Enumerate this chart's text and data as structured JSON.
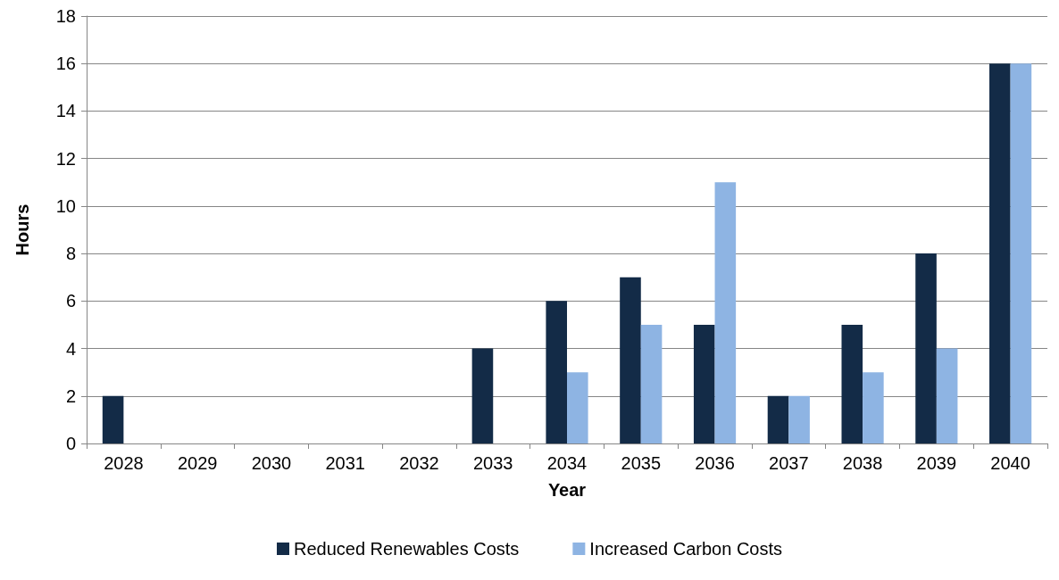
{
  "chart_data": {
    "type": "bar",
    "xlabel": "Year",
    "ylabel": "Hours",
    "categories": [
      "2028",
      "2029",
      "2030",
      "2031",
      "2032",
      "2033",
      "2034",
      "2035",
      "2036",
      "2037",
      "2038",
      "2039",
      "2040"
    ],
    "series": [
      {
        "name": "Reduced Renewables Costs",
        "color": "#132b47",
        "values": [
          2,
          0,
          0,
          0,
          0,
          4,
          6,
          7,
          5,
          2,
          5,
          8,
          16
        ]
      },
      {
        "name": "Increased Carbon Costs",
        "color": "#8eb4e3",
        "values": [
          0,
          0,
          0,
          0,
          0,
          0,
          3,
          5,
          11,
          2,
          3,
          4,
          16
        ]
      }
    ],
    "ylim": [
      0,
      18
    ],
    "yticks": [
      0,
      2,
      4,
      6,
      8,
      10,
      12,
      14,
      16,
      18
    ],
    "grid": "y",
    "legend": "bottom"
  }
}
